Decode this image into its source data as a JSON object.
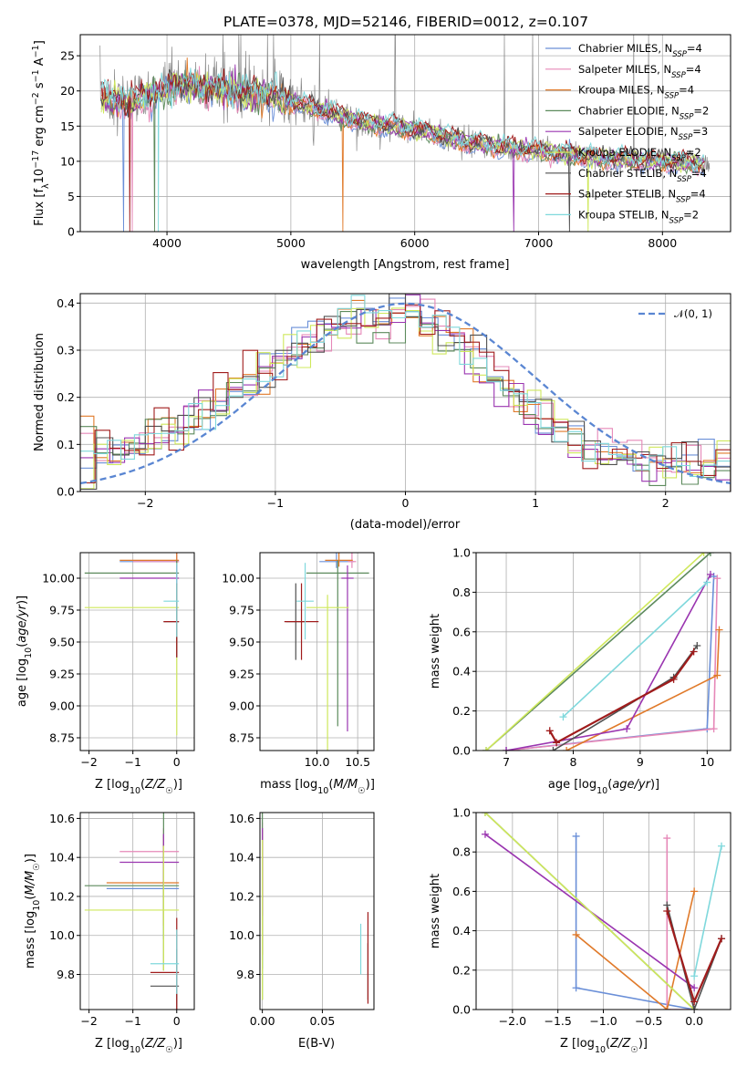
{
  "figure_title": "PLATE=0378, MJD=52146, FIBERID=0012, z=0.107",
  "colors": {
    "Chabrier MILES": "#6a8fd8",
    "Salpeter MILES": "#e688b8",
    "Kroupa MILES": "#e07a2a",
    "Chabrier ELODIE": "#5c8a5c",
    "Salpeter ELODIE": "#9a35b0",
    "Kroupa ELODIE": "#cfe85c",
    "Chabrier STELIB": "#505050",
    "Salpeter STELIB": "#a01c1c",
    "Kroupa STELIB": "#7fd8dc",
    "data": "#888888",
    "normal": "#5a86d2"
  },
  "models": [
    "Chabrier MILES",
    "Salpeter MILES",
    "Kroupa MILES",
    "Chabrier ELODIE",
    "Salpeter ELODIE",
    "Kroupa ELODIE",
    "Chabrier STELIB",
    "Salpeter STELIB",
    "Kroupa STELIB"
  ],
  "nssp": [
    4,
    4,
    4,
    2,
    3,
    2,
    4,
    4,
    2
  ],
  "chart_data": [
    {
      "id": "spectrum",
      "type": "line",
      "title": "PLATE=0378, MJD=52146, FIBERID=0012, z=0.107",
      "xlabel": "wavelength [Angstrom, rest frame]",
      "ylabel": "Flux [f_λ 10^-17 erg cm^-2 s^-1 A^-1]",
      "xlim": [
        3300,
        8550
      ],
      "ylim": [
        0,
        28
      ],
      "xticks": [
        4000,
        5000,
        6000,
        7000,
        8000
      ],
      "yticks": [
        0,
        5,
        10,
        15,
        20,
        25
      ],
      "legend": [
        "Chabrier MILES, N_SSP=4",
        "Salpeter MILES, N_SSP=4",
        "Kroupa MILES, N_SSP=4",
        "Chabrier ELODIE, N_SSP=2",
        "Salpeter ELODIE, N_SSP=3",
        "Kroupa ELODIE, N_SSP=2",
        "Chabrier STELIB, N_SSP=4",
        "Salpeter STELIB, N_SSP=4",
        "Kroupa STELIB, N_SSP=2"
      ],
      "legend_position": "top-right",
      "continuum": {
        "x": [
          3450,
          3700,
          3900,
          4100,
          4300,
          4500,
          4800,
          5000,
          5300,
          5600,
          6000,
          6500,
          7000,
          7500,
          8000,
          8400
        ],
        "y": [
          19,
          18.5,
          19.5,
          21,
          20.5,
          20,
          19.5,
          18.5,
          17,
          15.5,
          14.5,
          12.5,
          11.5,
          10.5,
          10,
          9.5
        ]
      }
    },
    {
      "id": "residuals",
      "type": "line",
      "xlabel": "(data-model)/error",
      "ylabel": "Normed distribution",
      "xlim": [
        -2.5,
        2.5
      ],
      "ylim": [
        0,
        0.42
      ],
      "xticks": [
        -2,
        -1,
        0,
        1,
        2
      ],
      "yticks": [
        0.0,
        0.1,
        0.2,
        0.3,
        0.4
      ],
      "legend": [
        "𝒩(0, 1)"
      ],
      "legend_position": "top-right"
    },
    {
      "id": "age_vs_Z",
      "type": "scatter",
      "xlabel": "Z [log10(Z/Z☉)]",
      "ylabel": "age [log10(age/yr)]",
      "xlim": [
        -2.2,
        0.4
      ],
      "ylim": [
        8.65,
        10.2
      ],
      "xticks": [
        -2,
        -1,
        0
      ],
      "yticks": [
        8.75,
        9.0,
        9.25,
        9.5,
        9.75,
        10.0
      ]
    },
    {
      "id": "age_vs_mass",
      "type": "scatter",
      "xlabel": "mass [log10(M/M☉)]",
      "xlim": [
        9.3,
        10.7
      ],
      "ylim": [
        8.65,
        10.2
      ],
      "xticks": [
        10.0,
        10.5
      ],
      "yticks": [
        8.75,
        9.0,
        9.25,
        9.5,
        9.75,
        10.0
      ]
    },
    {
      "id": "weight_vs_age",
      "type": "line",
      "xlabel": "age [log10(age/yr)]",
      "ylabel": "mass weight",
      "xlim": [
        6.55,
        10.35
      ],
      "ylim": [
        0,
        1
      ],
      "xticks": [
        7,
        8,
        9,
        10
      ],
      "yticks": [
        0.0,
        0.2,
        0.4,
        0.6,
        0.8,
        1.0
      ]
    },
    {
      "id": "mass_vs_Z",
      "type": "scatter",
      "xlabel": "Z [log10(Z/Z☉)]",
      "ylabel": "mass [log10(M/M☉)]",
      "xlim": [
        -2.2,
        0.4
      ],
      "ylim": [
        9.62,
        10.63
      ],
      "xticks": [
        -2,
        -1,
        0
      ],
      "yticks": [
        9.8,
        10.0,
        10.2,
        10.4,
        10.6
      ]
    },
    {
      "id": "mass_vs_ebv",
      "type": "scatter",
      "xlabel": "E(B-V)",
      "xlim": [
        -0.002,
        0.093
      ],
      "ylim": [
        9.62,
        10.63
      ],
      "xticks": [
        0.0,
        0.05
      ],
      "yticks": [
        9.8,
        10.0,
        10.2,
        10.4,
        10.6
      ]
    },
    {
      "id": "weight_vs_Z",
      "type": "line",
      "xlabel": "Z [log10(Z/Z☉)]",
      "ylabel": "mass weight",
      "xlim": [
        -2.4,
        0.4
      ],
      "ylim": [
        0,
        1
      ],
      "xticks": [
        -2.0,
        -1.5,
        -1.0,
        -0.5,
        0.0
      ],
      "yticks": [
        0.0,
        0.2,
        0.4,
        0.6,
        0.8,
        1.0
      ]
    }
  ],
  "estimates": [
    {
      "model": "Chabrier MILES",
      "Z": [
        -1.3,
        0.0
      ],
      "age": [
        10.13,
        10.13
      ],
      "mass": [
        10.08,
        10.4
      ],
      "ebv": 0.0
    },
    {
      "model": "Salpeter MILES",
      "Z": [
        -1.0,
        0.0
      ],
      "age": [
        10.13,
        10.13
      ],
      "mass": [
        10.43,
        10.43
      ],
      "ebv": 0.0
    },
    {
      "model": "Kroupa MILES",
      "Z": [
        -1.3,
        0.0
      ],
      "age": [
        10.14,
        10.14
      ],
      "mass": [
        10.15,
        10.39
      ],
      "ebv": 0.0
    },
    {
      "model": "Chabrier ELODIE",
      "Z": [
        -2.1,
        0.0
      ],
      "age": [
        10.04,
        10.04
      ],
      "mass": [
        9.92,
        10.59
      ],
      "ebv": 0.0
    },
    {
      "model": "Salpeter ELODIE",
      "Z": [
        -1.3,
        0.0
      ],
      "age": [
        10.0,
        10.0
      ],
      "mass": [
        10.35,
        10.4
      ],
      "ebv": 0.0
    },
    {
      "model": "Kroupa ELODIE",
      "Z": [
        -2.1,
        0.0
      ],
      "age": [
        9.77,
        9.77
      ],
      "mass": [
        9.92,
        10.34
      ],
      "ebv": 0.0
    },
    {
      "model": "Chabrier STELIB",
      "Z": [
        -0.3,
        0.0
      ],
      "age": [
        9.66,
        9.66
      ],
      "mass": [
        9.67,
        9.81
      ],
      "ebv": 0.088
    },
    {
      "model": "Salpeter STELIB",
      "Z": [
        -0.3,
        0.0
      ],
      "age": [
        9.66,
        9.66
      ],
      "mass": [
        9.65,
        9.97
      ],
      "ebv": 0.088
    },
    {
      "model": "Kroupa STELIB",
      "Z": [
        -0.3,
        0.0
      ],
      "age": [
        9.82,
        9.82
      ],
      "mass": [
        9.8,
        9.91
      ],
      "ebv": 0.082
    }
  ],
  "weight_age": [
    {
      "model": "Chabrier MILES",
      "pts": [
        [
          7.0,
          0.0
        ],
        [
          10.0,
          0.11
        ],
        [
          10.1,
          0.88
        ]
      ]
    },
    {
      "model": "Salpeter MILES",
      "pts": [
        [
          7.0,
          0.0
        ],
        [
          10.1,
          0.11
        ],
        [
          10.15,
          0.87
        ]
      ]
    },
    {
      "model": "Kroupa MILES",
      "pts": [
        [
          7.9,
          0.0
        ],
        [
          10.15,
          0.38
        ],
        [
          10.18,
          0.61
        ]
      ]
    },
    {
      "model": "Chabrier ELODIE",
      "pts": [
        [
          6.7,
          0.0
        ],
        [
          10.05,
          1.0
        ]
      ]
    },
    {
      "model": "Salpeter ELODIE",
      "pts": [
        [
          7.0,
          0.0
        ],
        [
          8.8,
          0.11
        ],
        [
          10.05,
          0.89
        ]
      ]
    },
    {
      "model": "Kroupa ELODIE",
      "pts": [
        [
          6.7,
          0.0
        ],
        [
          9.95,
          1.0
        ]
      ]
    },
    {
      "model": "Chabrier STELIB",
      "pts": [
        [
          7.7,
          0.0
        ],
        [
          9.5,
          0.37
        ],
        [
          9.85,
          0.53
        ]
      ]
    },
    {
      "model": "Salpeter STELIB",
      "pts": [
        [
          7.65,
          0.1
        ],
        [
          7.75,
          0.04
        ],
        [
          9.5,
          0.36
        ],
        [
          9.8,
          0.5
        ]
      ]
    },
    {
      "model": "Kroupa STELIB",
      "pts": [
        [
          7.85,
          0.17
        ],
        [
          10.0,
          0.85
        ]
      ]
    }
  ],
  "weight_Z": [
    {
      "model": "Chabrier MILES",
      "pts": [
        [
          -1.3,
          0.88
        ],
        [
          -1.3,
          0.11
        ],
        [
          0.0,
          0.0
        ]
      ]
    },
    {
      "model": "Salpeter MILES",
      "pts": [
        [
          -0.3,
          0.87
        ],
        [
          -0.3,
          0.0
        ],
        [
          0.0,
          0.0
        ]
      ]
    },
    {
      "model": "Kroupa MILES",
      "pts": [
        [
          -1.3,
          0.38
        ],
        [
          -0.3,
          0.0
        ],
        [
          0.0,
          0.6
        ]
      ]
    },
    {
      "model": "Chabrier ELODIE",
      "pts": [
        [
          -2.3,
          1.0
        ],
        [
          0.0,
          0.0
        ]
      ]
    },
    {
      "model": "Salpeter ELODIE",
      "pts": [
        [
          -2.3,
          0.89
        ],
        [
          0.0,
          0.11
        ]
      ]
    },
    {
      "model": "Kroupa ELODIE",
      "pts": [
        [
          -2.3,
          1.0
        ],
        [
          0.0,
          0.0
        ]
      ]
    },
    {
      "model": "Chabrier STELIB",
      "pts": [
        [
          -0.3,
          0.53
        ],
        [
          0.0,
          0.0
        ],
        [
          0.3,
          0.36
        ]
      ]
    },
    {
      "model": "Salpeter STELIB",
      "pts": [
        [
          -0.3,
          0.5
        ],
        [
          0.0,
          0.04
        ],
        [
          0.3,
          0.36
        ]
      ]
    },
    {
      "model": "Kroupa STELIB",
      "pts": [
        [
          0.0,
          0.17
        ],
        [
          0.3,
          0.83
        ]
      ]
    }
  ]
}
